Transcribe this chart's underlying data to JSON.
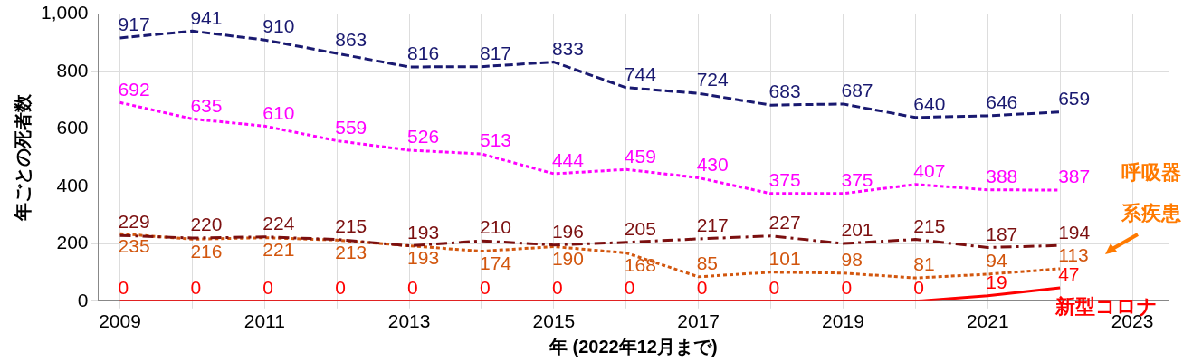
{
  "chart_data": {
    "type": "line",
    "xlabel": "年 (2022年12月まで)",
    "ylabel": "年ごとの死者数",
    "x": [
      2009,
      2010,
      2011,
      2012,
      2013,
      2014,
      2015,
      2016,
      2017,
      2018,
      2019,
      2020,
      2021,
      2022
    ],
    "xlim": [
      2008.7,
      2023.5
    ],
    "xticks": [
      2009,
      {
        "value": 2010,
        "label": null
      },
      2011,
      {
        "value": 2012,
        "label": null
      },
      2013,
      {
        "value": 2014,
        "label": null
      },
      2015,
      {
        "value": 2016,
        "label": null
      },
      2017,
      {
        "value": 2018,
        "label": null
      },
      2019,
      {
        "value": 2020,
        "label": null
      },
      2021,
      {
        "value": 2022,
        "label": null
      },
      2023
    ],
    "ylim": [
      0,
      1000
    ],
    "yticks": [
      0,
      200,
      400,
      600,
      800,
      {
        "value": 1000,
        "label": "1,000"
      }
    ],
    "grid": true,
    "legend": false,
    "marker": "none",
    "data_labels": true,
    "series": [
      {
        "color": "#191970",
        "line_style": "dashed",
        "values": [
          917,
          941,
          910,
          863,
          816,
          817,
          833,
          744,
          724,
          683,
          687,
          640,
          646,
          659
        ]
      },
      {
        "color": "#ff00ff",
        "line_style": "dotted",
        "values": [
          692,
          635,
          610,
          559,
          526,
          513,
          444,
          459,
          430,
          375,
          375,
          407,
          388,
          387
        ]
      },
      {
        "color": "#7b0f0f",
        "line_style": "dashdot",
        "values": [
          229,
          220,
          224,
          215,
          193,
          210,
          196,
          205,
          217,
          227,
          201,
          215,
          187,
          194
        ]
      },
      {
        "name": "呼吸器系疾患",
        "color": "#d2560e",
        "line_style": "dotted",
        "values": [
          235,
          216,
          221,
          213,
          193,
          174,
          190,
          168,
          85,
          101,
          98,
          81,
          94,
          113
        ]
      },
      {
        "name": "新型コロナ",
        "color": "#ff0000",
        "line_style": "solid",
        "values": [
          0,
          0,
          0,
          0,
          0,
          0,
          0,
          0,
          0,
          0,
          0,
          0,
          19,
          47
        ]
      }
    ]
  }
}
